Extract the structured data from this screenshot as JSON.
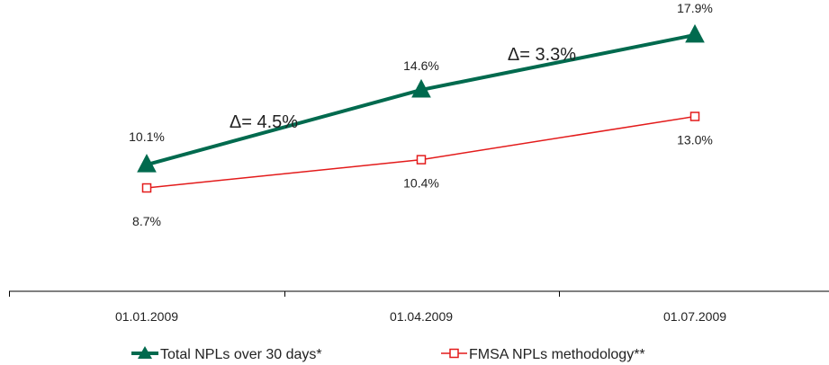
{
  "chart_data": {
    "type": "line",
    "categories": [
      "01.01.2009",
      "01.04.2009",
      "01.07.2009"
    ],
    "series": [
      {
        "name": "Total NPLs over 30 days*",
        "values": [
          10.1,
          14.6,
          17.9
        ],
        "labels": [
          "10.1%",
          "14.6%",
          "17.9%"
        ],
        "color": "#006a4e",
        "marker": "filled-triangle"
      },
      {
        "name": "FMSA NPLs methodology**",
        "values": [
          8.7,
          10.4,
          13.0
        ],
        "labels": [
          "8.7%",
          "10.4%",
          "13.0%"
        ],
        "color": "#e31b1b",
        "marker": "hollow-square"
      }
    ],
    "annotations": [
      {
        "text": "Δ= 4.5%"
      },
      {
        "text": "Δ= 3.3%"
      }
    ],
    "title": "",
    "xlabel": "",
    "ylabel": "",
    "ylim": [
      0,
      20
    ],
    "grid": false,
    "y_axis_visible": false,
    "legend": "bottom"
  }
}
